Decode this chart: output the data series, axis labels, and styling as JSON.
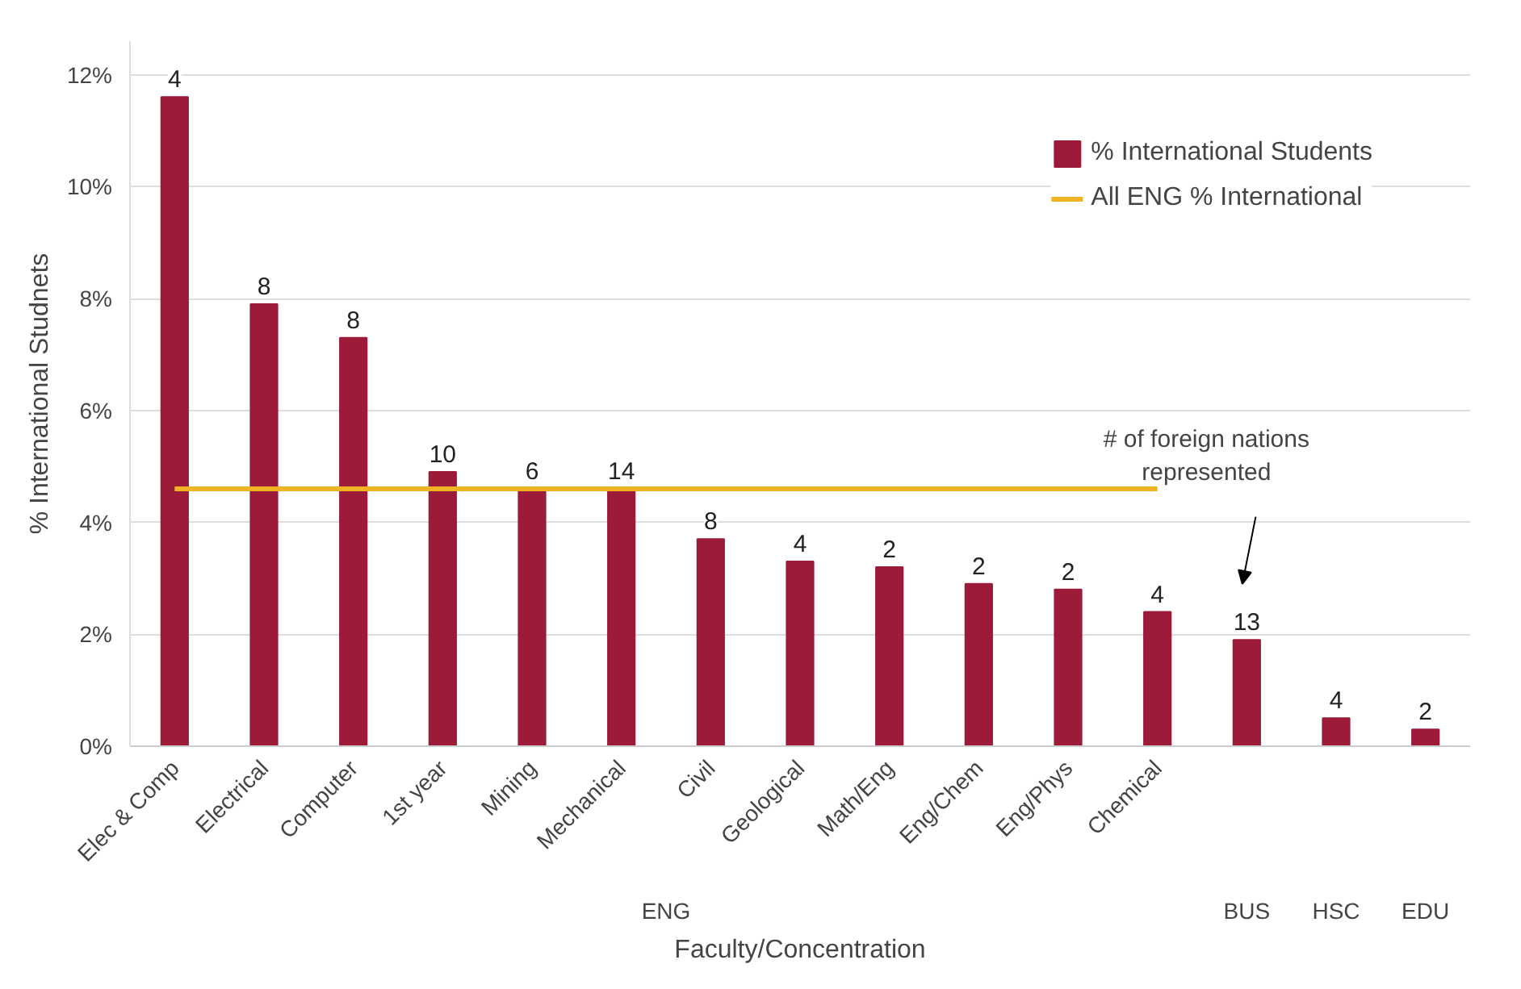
{
  "chart_data": {
    "type": "bar",
    "ylabel": "% International Studnets",
    "xlabel": "Faculty/Concentration",
    "categories": [
      "Elec & Comp",
      "Electrical",
      "Computer",
      "1st year",
      "Mining",
      "Mechanical",
      "Civil",
      "Geological",
      "Math/Eng",
      "Eng/Chem",
      "Eng/Phys",
      "Chemical",
      null,
      null,
      null
    ],
    "series": [
      {
        "name": "% International Students",
        "color": "#9b1b39",
        "values": [
          11.6,
          7.9,
          7.3,
          4.9,
          4.6,
          4.6,
          3.7,
          3.3,
          3.2,
          2.9,
          2.8,
          2.4,
          1.9,
          0.5,
          0.3
        ]
      },
      {
        "name": "All ENG % International",
        "type": "line",
        "color": "#f0b323",
        "values": [
          4.6,
          4.6,
          4.6,
          4.6,
          4.6,
          4.6,
          4.6,
          4.6,
          4.6,
          4.6,
          4.6,
          4.6,
          null,
          null,
          null
        ]
      }
    ],
    "ylim": [
      0,
      12.6
    ],
    "yticks": [
      {
        "value": 0,
        "label": "0%"
      },
      {
        "value": 2,
        "label": "2%"
      },
      {
        "value": 4,
        "label": "4%"
      },
      {
        "value": 6,
        "label": "6%"
      },
      {
        "value": 8,
        "label": "8%"
      },
      {
        "value": 10,
        "label": "10%"
      },
      {
        "value": 12,
        "label": "12%"
      }
    ],
    "grid": "y",
    "legend": "top right",
    "annotations": [
      "ENG",
      "BUS",
      "HSC",
      "EDU",
      "# of foreign nations represented",
      {
        "text": "4",
        "x": "Elec & Comp",
        "y": 11.6
      },
      {
        "text": "8",
        "x": "Electrical",
        "y": 7.9
      },
      {
        "text": "8",
        "x": "Computer",
        "y": 7.3
      },
      {
        "text": "10",
        "x": "1st year",
        "y": 4.9
      },
      {
        "text": "6",
        "x": "Mining",
        "y": 4.6
      },
      {
        "text": "14",
        "x": "Mechanical",
        "y": 4.6
      },
      {
        "text": "8",
        "x": "Civil",
        "y": 3.7
      },
      {
        "text": "4",
        "x": "Geological",
        "y": 3.3
      },
      {
        "text": "2",
        "x": "Math/Eng",
        "y": 3.2
      },
      {
        "text": "2",
        "x": "Eng/Chem",
        "y": 2.9
      },
      {
        "text": "2",
        "x": "Eng/Phys",
        "y": 2.8
      },
      {
        "text": "4",
        "x": "Chemical",
        "y": 2.4
      },
      {
        "text": "13",
        "y": 1.9
      },
      {
        "text": "4",
        "y": 0.5
      },
      {
        "text": "2",
        "y": 0.3
      }
    ]
  }
}
